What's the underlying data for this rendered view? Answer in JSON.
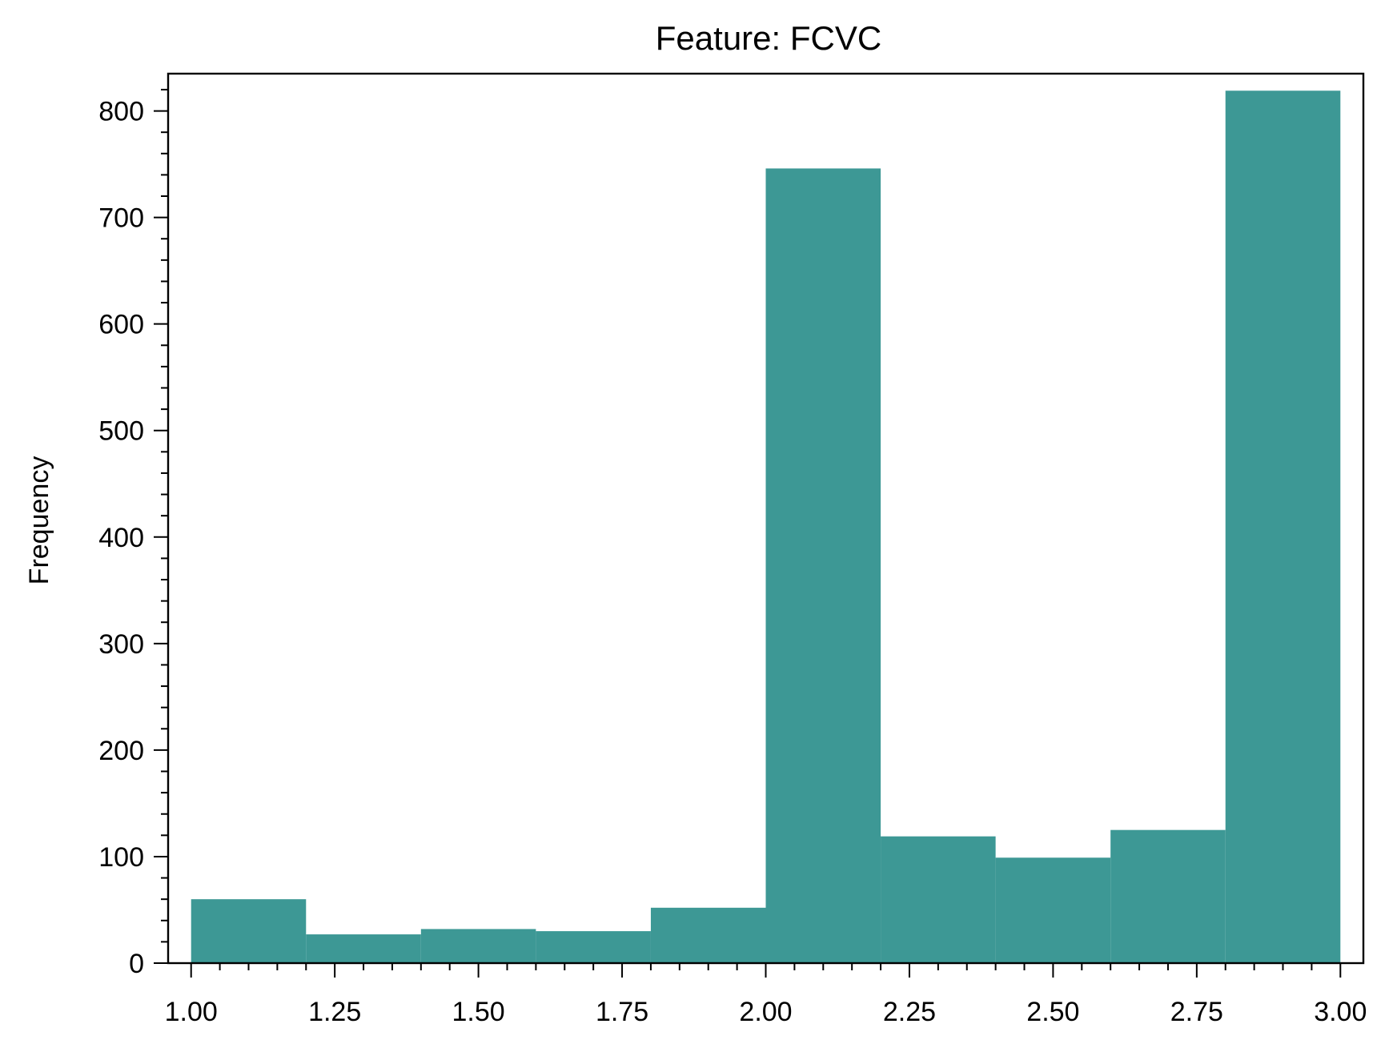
{
  "chart_data": {
    "type": "bar",
    "title": "Feature: FCVC",
    "xlabel": "",
    "ylabel": "Frequency",
    "bin_edges": [
      1.0,
      1.2,
      1.4,
      1.6,
      1.8,
      2.0,
      2.2,
      2.4,
      2.6,
      2.8,
      3.0
    ],
    "values": [
      60,
      27,
      32,
      30,
      52,
      746,
      119,
      99,
      125,
      819
    ],
    "xlim": [
      0.96,
      3.04
    ],
    "ylim": [
      0,
      835
    ],
    "xticks": [
      "1.00",
      "1.25",
      "1.50",
      "1.75",
      "2.00",
      "2.25",
      "2.50",
      "2.75",
      "3.00"
    ],
    "yticks": [
      "0",
      "100",
      "200",
      "300",
      "400",
      "500",
      "600",
      "700",
      "800"
    ],
    "bar_color": "#3d9895",
    "grid": false,
    "legend": "none"
  }
}
